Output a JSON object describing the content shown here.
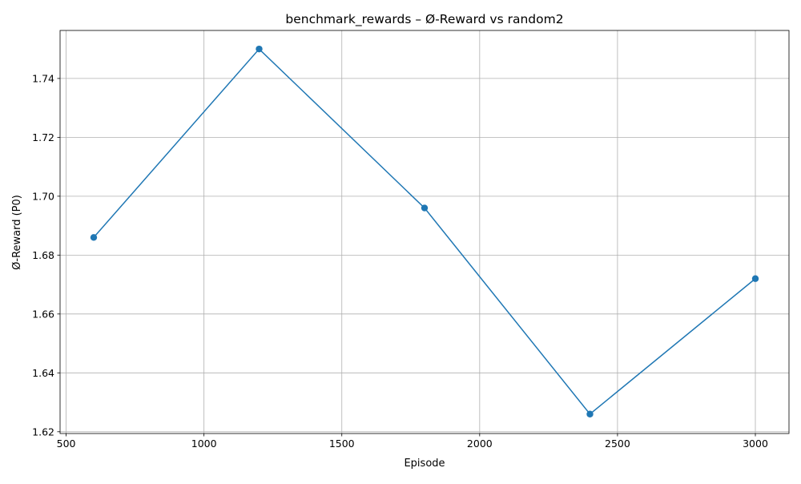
{
  "chart_data": {
    "type": "line",
    "title": "benchmark_rewards – Ø-Reward vs random2",
    "xlabel": "Episode",
    "ylabel": "Ø-Reward (P0)",
    "xlim": [
      478,
      3122
    ],
    "ylim": [
      1.6194,
      1.7563
    ],
    "x_ticks": [
      500,
      1000,
      1500,
      2000,
      2500,
      3000
    ],
    "x_tick_labels": [
      "500",
      "1000",
      "1500",
      "2000",
      "2500",
      "3000"
    ],
    "y_ticks": [
      1.62,
      1.64,
      1.66,
      1.68,
      1.7,
      1.72,
      1.74
    ],
    "y_tick_labels": [
      "1.62",
      "1.64",
      "1.66",
      "1.68",
      "1.70",
      "1.72",
      "1.74"
    ],
    "grid": true,
    "marker": "circle",
    "series": [
      {
        "x": [
          600,
          1200,
          1800,
          2400,
          3000
        ],
        "values": [
          1.686,
          1.75,
          1.696,
          1.626,
          1.672
        ],
        "color": "#1f77b4"
      }
    ]
  }
}
